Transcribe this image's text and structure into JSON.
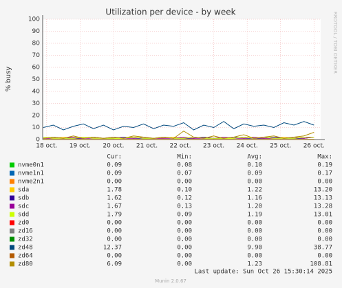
{
  "chart_data": {
    "type": "line",
    "title": "Utilization per device - by week",
    "y_label": "% busy",
    "side_label": "RRDTOOL / TOBI OETIKER",
    "x": [
      17.9,
      18.2,
      18.5,
      18.8,
      19.1,
      19.4,
      19.7,
      20.0,
      20.3,
      20.6,
      20.9,
      21.2,
      21.5,
      21.8,
      22.1,
      22.4,
      22.7,
      23.0,
      23.3,
      23.6,
      23.9,
      24.2,
      24.5,
      24.8,
      25.1,
      25.4,
      25.7,
      26.0
    ],
    "xlim": [
      17.88,
      26.2
    ],
    "xticks": [
      {
        "value": 18,
        "label": "18 oct."
      },
      {
        "value": 19,
        "label": "19 oct."
      },
      {
        "value": 20,
        "label": "20 oct."
      },
      {
        "value": 21,
        "label": "21 oct."
      },
      {
        "value": 22,
        "label": "22 oct."
      },
      {
        "value": 23,
        "label": "23 oct."
      },
      {
        "value": 24,
        "label": "24 oct."
      },
      {
        "value": 25,
        "label": "25 oct."
      },
      {
        "value": 26,
        "label": "26 oct."
      }
    ],
    "ylim": [
      0,
      100
    ],
    "yticks": [
      0,
      10,
      20,
      30,
      40,
      50,
      60,
      70,
      80,
      90,
      100
    ],
    "grid": true,
    "legend_columns": [
      "Cur:",
      "Min:",
      "Avg:",
      "Max:"
    ],
    "series": [
      {
        "name": "nvme0n1",
        "color": "#00cc00",
        "stats": [
          0.09,
          0.08,
          0.1,
          0.19
        ],
        "stats_labels": [
          "0.09",
          "0.08",
          "0.10",
          "0.19"
        ],
        "values": [
          0.1,
          0.1,
          0.1,
          0.1,
          0.1,
          0.1,
          0.1,
          0.1,
          0.1,
          0.1,
          0.1,
          0.1,
          0.1,
          0.1,
          0.1,
          0.1,
          0.1,
          0.1,
          0.1,
          0.1,
          0.1,
          0.1,
          0.1,
          0.1,
          0.1,
          0.1,
          0.1,
          0.1
        ]
      },
      {
        "name": "nvme1n1",
        "color": "#0066b3",
        "stats": [
          0.09,
          0.07,
          0.09,
          0.17
        ],
        "stats_labels": [
          "0.09",
          "0.07",
          "0.09",
          "0.17"
        ],
        "values": [
          0.1,
          0.1,
          0.1,
          0.1,
          0.1,
          0.1,
          0.1,
          0.1,
          0.1,
          0.1,
          0.1,
          0.1,
          0.1,
          0.1,
          0.1,
          0.1,
          0.1,
          0.1,
          0.1,
          0.1,
          0.1,
          0.1,
          0.1,
          0.1,
          0.1,
          0.1,
          0.1,
          0.1
        ]
      },
      {
        "name": "nvme2n1",
        "color": "#ff8000",
        "stats": [
          0,
          0,
          0,
          0
        ],
        "stats_labels": [
          "0.00",
          "0.00",
          "0.00",
          "0.00"
        ],
        "values": [
          0,
          0,
          0,
          0,
          0,
          0,
          0,
          0,
          0,
          0,
          0,
          0,
          0,
          0,
          0,
          0,
          0,
          0,
          0,
          0,
          0,
          0,
          0,
          0,
          0,
          0,
          0,
          0
        ]
      },
      {
        "name": "sda",
        "color": "#ffcc00",
        "stats": [
          1.78,
          0.1,
          1.22,
          13.2
        ],
        "stats_labels": [
          "1.78",
          "0.10",
          "1.22",
          "13.20"
        ],
        "values": [
          1,
          1,
          2,
          1,
          1,
          2,
          1,
          1,
          1,
          2,
          1,
          1,
          1,
          2,
          1,
          1,
          2,
          1,
          1,
          1,
          2,
          1,
          1,
          1,
          2,
          1,
          1,
          2
        ]
      },
      {
        "name": "sdb",
        "color": "#330099",
        "stats": [
          1.62,
          0.12,
          1.16,
          13.13
        ],
        "stats_labels": [
          "1.62",
          "0.12",
          "1.16",
          "13.13"
        ],
        "values": [
          1,
          2,
          1,
          1,
          1,
          2,
          1,
          1,
          2,
          1,
          1,
          1,
          2,
          1,
          1,
          1,
          2,
          1,
          1,
          2,
          1,
          1,
          1,
          2,
          1,
          1,
          1,
          2
        ]
      },
      {
        "name": "sdc",
        "color": "#990099",
        "stats": [
          1.67,
          0.13,
          1.2,
          13.28
        ],
        "stats_labels": [
          "1.67",
          "0.13",
          "1.20",
          "13.28"
        ],
        "values": [
          1,
          1,
          1,
          2,
          1,
          1,
          1,
          2,
          1,
          1,
          2,
          1,
          1,
          1,
          2,
          1,
          1,
          1,
          2,
          1,
          1,
          2,
          1,
          1,
          1,
          2,
          1,
          2
        ]
      },
      {
        "name": "sdd",
        "color": "#ccff00",
        "stats": [
          1.79,
          0.09,
          1.19,
          13.01
        ],
        "stats_labels": [
          "1.79",
          "0.09",
          "1.19",
          "13.01"
        ],
        "values": [
          2,
          1,
          1,
          1,
          2,
          1,
          1,
          1,
          1,
          2,
          1,
          1,
          2,
          1,
          1,
          2,
          1,
          1,
          1,
          1,
          2,
          1,
          2,
          1,
          1,
          1,
          2,
          2
        ]
      },
      {
        "name": "zd0",
        "color": "#ff0000",
        "stats": [
          0,
          0,
          0,
          0
        ],
        "stats_labels": [
          "0.00",
          "0.00",
          "0.00",
          "0.00"
        ],
        "values": [
          0,
          0,
          0,
          0,
          0,
          0,
          0,
          0,
          0,
          0,
          0,
          0,
          0,
          0,
          0,
          0,
          0,
          0,
          0,
          0,
          0,
          0,
          0,
          0,
          0,
          0,
          0,
          0
        ]
      },
      {
        "name": "zd16",
        "color": "#808080",
        "stats": [
          0,
          0,
          0,
          0
        ],
        "stats_labels": [
          "0.00",
          "0.00",
          "0.00",
          "0.00"
        ],
        "values": [
          0,
          0,
          0,
          0,
          0,
          0,
          0,
          0,
          0,
          0,
          0,
          0,
          0,
          0,
          0,
          0,
          0,
          0,
          0,
          0,
          0,
          0,
          0,
          0,
          0,
          0,
          0,
          0
        ]
      },
      {
        "name": "zd32",
        "color": "#008f00",
        "stats": [
          0,
          0,
          0,
          0
        ],
        "stats_labels": [
          "0.00",
          "0.00",
          "0.00",
          "0.00"
        ],
        "values": [
          0,
          0,
          0,
          0,
          0,
          0,
          0,
          0,
          0,
          0,
          0,
          0,
          0,
          0,
          0,
          0,
          0,
          0,
          0,
          0,
          0,
          0,
          0,
          0,
          0,
          0,
          0,
          0
        ]
      },
      {
        "name": "zd48",
        "color": "#00487d",
        "stats": [
          12.37,
          0,
          9.9,
          38.77
        ],
        "stats_labels": [
          "12.37",
          "0.00",
          "9.90",
          "38.77"
        ],
        "values": [
          10,
          12,
          8,
          11,
          13,
          9,
          12,
          8,
          11,
          10,
          13,
          9,
          12,
          11,
          14,
          8,
          12,
          10,
          15,
          9,
          13,
          11,
          12,
          10,
          14,
          12,
          15,
          12
        ]
      },
      {
        "name": "zd64",
        "color": "#b35a00",
        "stats": [
          0,
          0,
          0,
          0
        ],
        "stats_labels": [
          "0.00",
          "0.00",
          "0.00",
          "0.00"
        ],
        "values": [
          0,
          0,
          0,
          0,
          0,
          0,
          0,
          0,
          0,
          0,
          0,
          0,
          0,
          0,
          0,
          0,
          0,
          0,
          0,
          0,
          0,
          0,
          0,
          0,
          0,
          0,
          0,
          0
        ]
      },
      {
        "name": "zd80",
        "color": "#b38f00",
        "stats": [
          6.09,
          0,
          1.23,
          108.81
        ],
        "stats_labels": [
          "6.09",
          "0.00",
          "1.23",
          "108.81"
        ],
        "values": [
          1,
          2,
          1,
          3,
          1,
          2,
          1,
          2,
          1,
          3,
          2,
          1,
          2,
          1,
          7,
          2,
          1,
          3,
          1,
          2,
          4,
          1,
          2,
          3,
          1,
          2,
          3,
          6
        ]
      }
    ],
    "last_update": "Last update: Sun Oct 26 15:30:14 2025",
    "footer": "Munin 2.0.67"
  }
}
